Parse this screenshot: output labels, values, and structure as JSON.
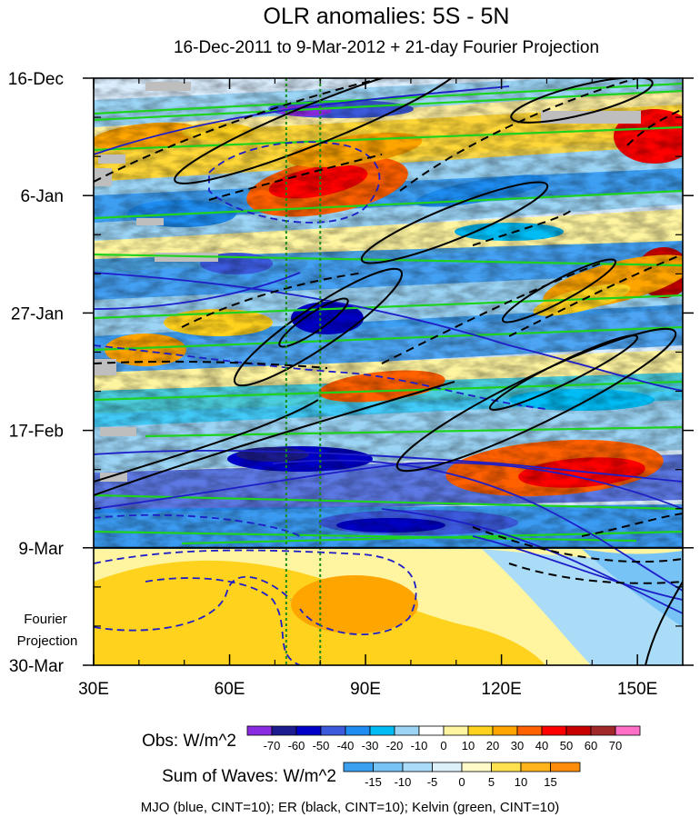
{
  "chart_data": {
    "type": "heatmap",
    "title": "OLR anomalies: 5S - 5N",
    "subtitle": "16-Dec-2011 to 9-Mar-2012 + 21-day Fourier Projection",
    "x_ticks": [
      {
        "lon": 30,
        "label": "30E"
      },
      {
        "lon": 60,
        "label": "60E"
      },
      {
        "lon": 90,
        "label": "90E"
      },
      {
        "lon": 120,
        "label": "120E"
      },
      {
        "lon": 150,
        "label": "150E"
      }
    ],
    "x_range": [
      30,
      160
    ],
    "y_ticks": [
      {
        "day": 0,
        "label": "16-Dec"
      },
      {
        "day": 21,
        "label": "6-Jan"
      },
      {
        "day": 42,
        "label": "27-Jan"
      },
      {
        "day": 63,
        "label": "17-Feb"
      },
      {
        "day": 84,
        "label": "9-Mar"
      },
      {
        "day": 105,
        "label": "30-Mar"
      }
    ],
    "y_range_days": [
      0,
      105
    ],
    "observation_end_day": 84,
    "projection_label_line1": "Fourier",
    "projection_label_line2": "Projection",
    "reference_longitudes": [
      72.5,
      80
    ],
    "obs_colorbar": {
      "label": "Obs: W/m^2",
      "levels": [
        -70,
        -60,
        -50,
        -40,
        -30,
        -20,
        -10,
        0,
        10,
        20,
        30,
        40,
        50,
        60,
        70
      ],
      "colors": [
        "#8a2be2",
        "#1c1c8f",
        "#0000c8",
        "#3c5adc",
        "#1e8cf0",
        "#00bcf5",
        "#9bd4f5",
        "#ffffff",
        "#fff5a0",
        "#ffd21e",
        "#ffa500",
        "#ff6000",
        "#ff0000",
        "#c80000",
        "#a02828",
        "#ff6ec7"
      ]
    },
    "waves_colorbar": {
      "label": "Sum of Waves: W/m^2",
      "levels": [
        -15,
        -10,
        -5,
        0,
        5,
        10,
        15
      ],
      "colors": [
        "#3ca0f0",
        "#78c3f5",
        "#aadcf8",
        "#dcf0fa",
        "#fffac8",
        "#ffe150",
        "#ffb41e",
        "#ff8c0a"
      ]
    },
    "contour_legend": "MJO (blue, CINT=10); ER (black, CINT=10); Kelvin (green, CINT=10)",
    "series_colors": {
      "mjo": "#1e1ec8",
      "er": "#000000",
      "kelvin": "#1ed21e",
      "reference": "#1a8c1a"
    }
  }
}
